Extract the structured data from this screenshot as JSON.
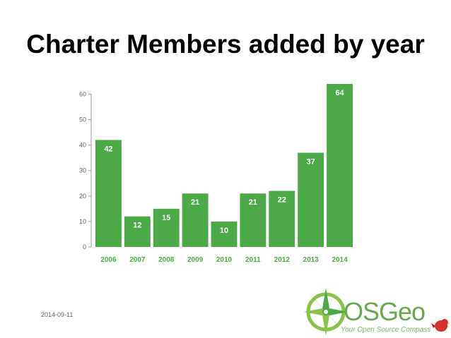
{
  "slide": {
    "title": "Charter Members added by year",
    "date": "2014-09-11"
  },
  "logo": {
    "word": "OSGeo",
    "tagline": "Your Open Source Compass",
    "icon": "compass-rose-icon",
    "mascot_icon": "red-bird-icon",
    "color": "#6aa84f"
  },
  "chart_data": {
    "type": "bar",
    "title": "",
    "xlabel": "",
    "ylabel": "",
    "categories": [
      "2006",
      "2007",
      "2008",
      "2009",
      "2010",
      "2011",
      "2012",
      "2013",
      "2014"
    ],
    "values": [
      42,
      12,
      15,
      21,
      10,
      21,
      22,
      37,
      64
    ],
    "ylim": [
      0,
      64
    ],
    "yticks": [
      0,
      10,
      20,
      30,
      40,
      50,
      60
    ],
    "data_labels": true,
    "grid": false,
    "bar_color": "#4caa46",
    "label_color": "#4caa46"
  }
}
